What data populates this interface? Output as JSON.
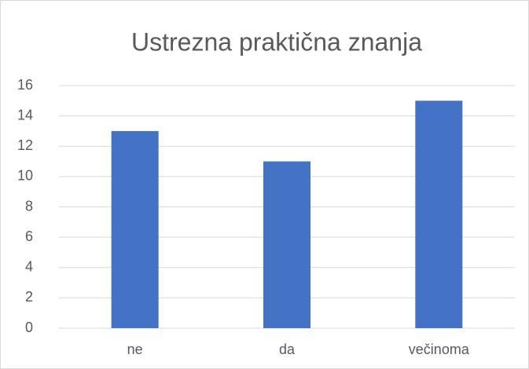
{
  "chart_data": {
    "type": "bar",
    "title": "Ustrezna praktična znanja",
    "categories": [
      "ne",
      "da",
      "večinoma"
    ],
    "values": [
      13,
      11,
      15
    ],
    "color": "#4472c4",
    "ylim": [
      0,
      16
    ],
    "yticks": [
      0,
      2,
      4,
      6,
      8,
      10,
      12,
      14,
      16
    ],
    "grid": true
  }
}
